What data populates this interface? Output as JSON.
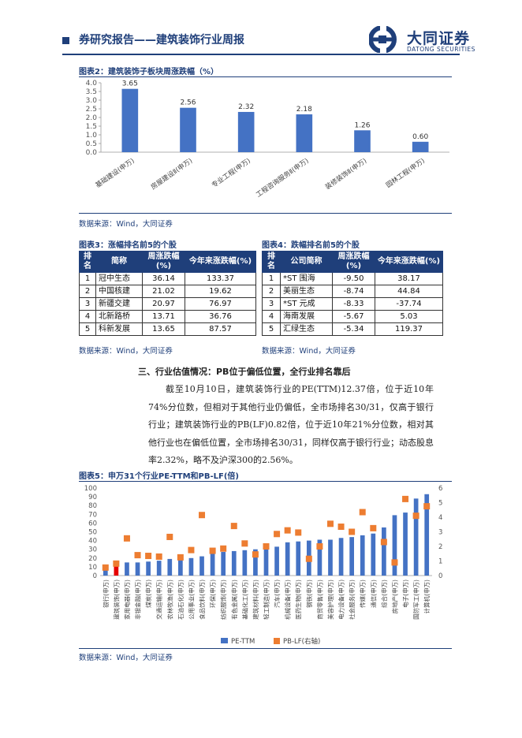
{
  "header": {
    "title": "券研究报告——建筑装饰行业周报",
    "logo_cn": "大同证券",
    "logo_en": "DATONG SECURITIES"
  },
  "fig2": {
    "title": "图表2：建筑装饰子板块周涨跌幅（%）",
    "source": "数据来源：Wind，大同证券",
    "chart_data": {
      "type": "bar",
      "categories": [
        "基础建设(申万)",
        "房屋建设Ⅱ(申万)",
        "专业工程(申万)",
        "工程咨询服务Ⅱ(申万)",
        "装修装饰Ⅱ(申万)",
        "园林工程(申万)"
      ],
      "values": [
        3.65,
        2.56,
        2.32,
        2.18,
        1.26,
        0.6
      ],
      "value_labels": [
        "3.65",
        "2.56",
        "2.32",
        "2.18",
        "1.26",
        "0.60"
      ],
      "ylim": [
        0,
        4.0
      ],
      "yticks": [
        "0.0",
        "0.5",
        "1.0",
        "1.5",
        "2.0",
        "2.5",
        "3.0",
        "3.5",
        "4.0"
      ],
      "color": "#4472c4"
    }
  },
  "fig3": {
    "title": "图表3：涨幅排名前5的个股",
    "source": "数据来源：Wind，大同证券",
    "headers": [
      "排名",
      "简称",
      "周涨跌幅(%)",
      "今年来涨跌幅(%)"
    ],
    "rows": [
      [
        "1",
        "冠中生态",
        "36.14",
        "133.37"
      ],
      [
        "2",
        "中国核建",
        "21.02",
        "19.62"
      ],
      [
        "3",
        "新疆交建",
        "20.97",
        "76.97"
      ],
      [
        "4",
        "北新路桥",
        "13.71",
        "36.76"
      ],
      [
        "5",
        "科新发展",
        "13.65",
        "87.57"
      ]
    ]
  },
  "fig4": {
    "title": "图表4：跌幅排名前5的个股",
    "source": "数据来源：Wind，大同证券",
    "headers": [
      "排名",
      "公司简称",
      "周涨跌幅(%)",
      "今年来涨跌幅(%)"
    ],
    "rows": [
      [
        "1",
        "*ST 围海",
        "-9.50",
        "38.17"
      ],
      [
        "2",
        "美丽生态",
        "-8.74",
        "44.84"
      ],
      [
        "3",
        "*ST 元成",
        "-8.33",
        "-37.74"
      ],
      [
        "4",
        "海南发展",
        "-5.67",
        "5.03"
      ],
      [
        "5",
        "汇绿生态",
        "-5.34",
        "119.37"
      ]
    ]
  },
  "section": {
    "heading": "三、行业估值情况：PB位于偏低位置，全行业排名靠后",
    "paragraph": "截至10月10日，建筑装饰行业的PE(TTM)12.37倍，位于近10年74%分位数，但相对于其他行业仍偏低，全市场排名30/31，仅高于银行行业；建筑装饰行业的PB(LF)0.82倍，位于近10年21%分位数，相对其他行业也在偏低位置，全市场排名30/31，同样仅高于银行行业；动态股息率2.32%，略不及沪深300的2.56%。"
  },
  "fig5": {
    "title": "图表5：申万31个行业PE-TTM和PB-LF(倍)",
    "source": "数据来源：Wind，大同证券",
    "chart_data": {
      "type": "bar",
      "categories": [
        "银行(申万)",
        "建筑装饰(申万)",
        "家用电器(申万)",
        "非银金融(申万)",
        "煤炭(申万)",
        "交通运输(申万)",
        "农林牧渔(申万)",
        "石油石化(申万)",
        "公用事业(申万)",
        "食品饮料(申万)",
        "环保(申万)",
        "纺织服饰(申万)",
        "有色金属(申万)",
        "基础化工(申万)",
        "建筑材料(申万)",
        "轻工制造(申万)",
        "汽车(申万)",
        "机械设备(申万)",
        "医药生物(申万)",
        "钢铁(申万)",
        "商贸零售(申万)",
        "美容护理(申万)",
        "电力设备(申万)",
        "社会服务(申万)",
        "传媒(申万)",
        "通信(申万)",
        "综合(申万)",
        "房地产(申万)",
        "电子(申万)",
        "国防军工(申万)",
        "计算机(申万)"
      ],
      "series": [
        {
          "name": "PE-TTM",
          "axis": "left",
          "color": "#4472c4",
          "values": [
            6,
            12.37,
            15,
            15,
            16,
            17,
            19,
            19,
            20,
            22,
            25,
            27,
            28,
            29,
            30,
            31,
            33,
            38,
            39,
            40,
            41,
            41,
            43,
            44,
            46,
            48,
            55,
            69,
            72,
            88,
            93
          ]
        },
        {
          "name": "PB-LF(右轴)",
          "axis": "right",
          "color": "#ed7d31",
          "values": [
            0.55,
            0.82,
            2.55,
            1.4,
            1.35,
            1.3,
            2.65,
            1.25,
            1.75,
            4.15,
            1.7,
            1.85,
            3.4,
            2.2,
            1.45,
            2.0,
            2.85,
            3.1,
            2.95,
            1.15,
            2.0,
            3.55,
            3.35,
            3.0,
            4.35,
            3.25,
            2.3,
            0.9,
            5.25,
            4.1,
            4.75
          ]
        }
      ],
      "ylim_left": [
        0,
        100
      ],
      "ylim_right": [
        0,
        6
      ],
      "yticks_left": [
        "0",
        "10",
        "20",
        "30",
        "40",
        "50",
        "60",
        "70",
        "80",
        "90",
        "100"
      ],
      "yticks_right": [
        "0",
        "1",
        "2",
        "3",
        "4",
        "5",
        "6"
      ],
      "highlight_color": "#e60000",
      "legend_placement": "bottom"
    }
  }
}
